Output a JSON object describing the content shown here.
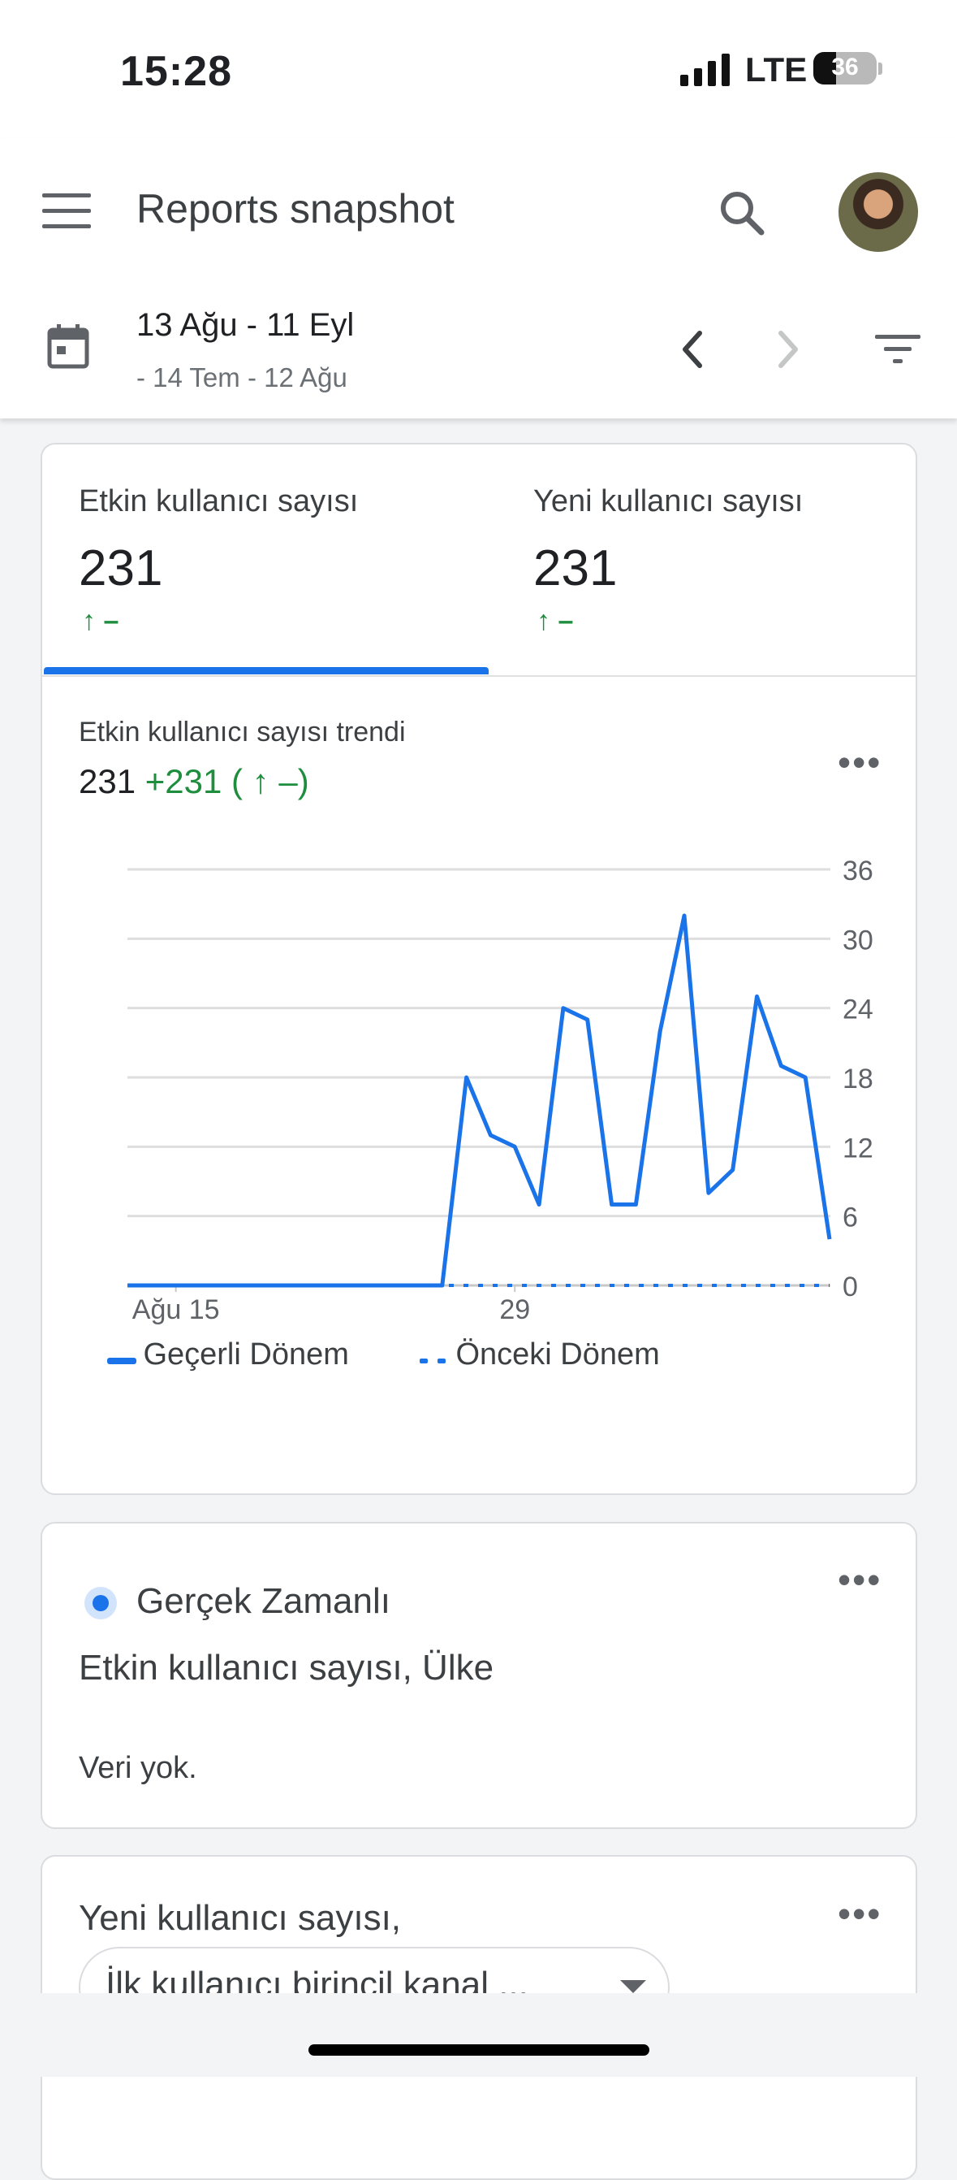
{
  "status_bar": {
    "time": "15:28",
    "network": "LTE",
    "battery": "36"
  },
  "app_bar": {
    "title": "Reports snapshot"
  },
  "date_bar": {
    "range": "13 Ağu - 11 Eyl",
    "compare": "- 14 Tem - 12 Ağu"
  },
  "metrics_card": {
    "tabs": [
      {
        "label": "Etkin kullanıcı sayısı",
        "value": "231",
        "change": "↑ –"
      },
      {
        "label": "Yeni kullanıcı sayısı",
        "value": "231",
        "change": "↑ –"
      }
    ],
    "trend_title": "Etkin kullanıcı sayısı trendi",
    "trend_value": "231",
    "trend_change": "+231 ( ↑ –)",
    "more_icon": "more-horiz-icon"
  },
  "chart_data": {
    "type": "line",
    "x_tick_labels": [
      "Ağu 15",
      "29"
    ],
    "x_tick_index": [
      2,
      16
    ],
    "ylim": [
      0,
      36
    ],
    "y_ticks": [
      0,
      6,
      12,
      18,
      24,
      30,
      36
    ],
    "y_axis_side": "right",
    "grid": true,
    "legend": "bottom-left",
    "series": [
      {
        "name": "Geçerli Dönem",
        "style": "solid",
        "color": "#1a73e8",
        "values": [
          0,
          0,
          0,
          0,
          0,
          0,
          0,
          0,
          0,
          0,
          0,
          0,
          0,
          0,
          18,
          13,
          12,
          7,
          24,
          23,
          7,
          7,
          22,
          32,
          8,
          10,
          25,
          19,
          18,
          4
        ]
      },
      {
        "name": "Önceki Dönem",
        "style": "dashed",
        "color": "#1a73e8",
        "values": [
          0,
          0,
          0,
          0,
          0,
          0,
          0,
          0,
          0,
          0,
          0,
          0,
          0,
          0,
          0,
          0,
          0,
          0,
          0,
          0,
          0,
          0,
          0,
          0,
          0,
          0,
          0,
          0,
          0,
          0
        ]
      }
    ]
  },
  "realtime_card": {
    "title": "Gerçek Zamanlı",
    "subtitle": "Etkin kullanıcı sayısı, Ülke",
    "empty_text": "Veri yok."
  },
  "new_users_card": {
    "title": "Yeni kullanıcı sayısı,",
    "select_value": "İlk kullanıcı birincil kanal ..."
  }
}
